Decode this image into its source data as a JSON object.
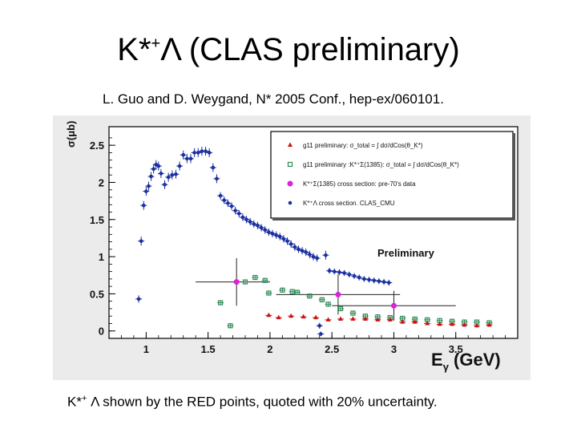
{
  "slide": {
    "title_main": "K*",
    "title_sup": "+",
    "title_rest": "Λ (CLAS preliminary)",
    "subtitle": "L. Guo and D. Weygand, N* 2005 Conf., hep-ex/060101.",
    "caption_main": "K*",
    "caption_sup": "+",
    "caption_rest": " Λ shown by the RED points, quoted with 20% uncertainty."
  },
  "chart_data": {
    "type": "scatter",
    "title": "",
    "annotation": "Preliminary",
    "xlabel": "E_γ (GeV)",
    "xlabel_main": "E",
    "xlabel_sub": "γ",
    "xlabel_unit": " (GeV)",
    "ylabel": "σ(μb)",
    "xlim": [
      0.7,
      4.0
    ],
    "ylim": [
      -0.1,
      2.75
    ],
    "xticks": [
      "1",
      "1.5",
      "2",
      "2.5",
      "3",
      "3.5"
    ],
    "xtick_values": [
      1,
      1.5,
      2,
      2.5,
      3,
      3.5
    ],
    "yticks": [
      "0",
      "0.5",
      "1",
      "1.5",
      "2",
      "2.5"
    ],
    "ytick_values": [
      0,
      0.5,
      1,
      1.5,
      2,
      2.5
    ],
    "grid": false,
    "legend_position": "top-right",
    "colors": {
      "red": "#cc1111",
      "green": "#2e8b57",
      "magenta": "#dd22dd",
      "blue": "#1a2fa0"
    },
    "series": [
      {
        "name": "g11 preliminary σ_total = ∫ dσ/dCos(θ_K*) ",
        "legend_text": "g11 preliminary: σ_total = ∫ dσ/dCos(θ_K*)",
        "marker": "triangle",
        "color": "red",
        "points": [
          {
            "x": 1.99,
            "y": 0.21,
            "err": 0.02
          },
          {
            "x": 2.07,
            "y": 0.18,
            "err": 0.02
          },
          {
            "x": 2.17,
            "y": 0.2,
            "err": 0.02
          },
          {
            "x": 2.27,
            "y": 0.19,
            "err": 0.02
          },
          {
            "x": 2.37,
            "y": 0.18,
            "err": 0.02
          },
          {
            "x": 2.47,
            "y": 0.15,
            "err": 0.02
          },
          {
            "x": 2.57,
            "y": 0.16,
            "err": 0.02
          },
          {
            "x": 2.67,
            "y": 0.16,
            "err": 0.02
          },
          {
            "x": 2.77,
            "y": 0.16,
            "err": 0.02
          },
          {
            "x": 2.87,
            "y": 0.15,
            "err": 0.02
          },
          {
            "x": 2.97,
            "y": 0.15,
            "err": 0.02
          },
          {
            "x": 3.07,
            "y": 0.12,
            "err": 0.02
          },
          {
            "x": 3.17,
            "y": 0.12,
            "err": 0.02
          },
          {
            "x": 3.27,
            "y": 0.1,
            "err": 0.02
          },
          {
            "x": 3.37,
            "y": 0.09,
            "err": 0.02
          },
          {
            "x": 3.47,
            "y": 0.09,
            "err": 0.02
          },
          {
            "x": 3.57,
            "y": 0.08,
            "err": 0.02
          },
          {
            "x": 3.67,
            "y": 0.07,
            "err": 0.02
          },
          {
            "x": 3.77,
            "y": 0.08,
            "err": 0.02
          }
        ]
      },
      {
        "name": "g11 preliminary :K*Σ(1385)",
        "legend_text": "g11 preliminary :K*⁺Σ(1385): σ_total = ∫ dσ/dCos(θ_K*)",
        "marker": "open-square",
        "color": "green",
        "points": [
          {
            "x": 1.6,
            "y": 0.38,
            "err": 0.03
          },
          {
            "x": 1.68,
            "y": 0.07,
            "err": 0.03
          },
          {
            "x": 1.8,
            "y": 0.66,
            "err": 0.03
          },
          {
            "x": 1.88,
            "y": 0.72,
            "err": 0.03
          },
          {
            "x": 1.96,
            "y": 0.68,
            "err": 0.03
          },
          {
            "x": 1.99,
            "y": 0.51,
            "err": 0.03
          },
          {
            "x": 2.1,
            "y": 0.55,
            "err": 0.03
          },
          {
            "x": 2.18,
            "y": 0.53,
            "err": 0.03
          },
          {
            "x": 2.22,
            "y": 0.52,
            "err": 0.03
          },
          {
            "x": 2.32,
            "y": 0.47,
            "err": 0.03
          },
          {
            "x": 2.42,
            "y": 0.42,
            "err": 0.03
          },
          {
            "x": 2.47,
            "y": 0.36,
            "err": 0.03
          },
          {
            "x": 2.57,
            "y": 0.3,
            "err": 0.03
          },
          {
            "x": 2.67,
            "y": 0.24,
            "err": 0.03
          },
          {
            "x": 2.77,
            "y": 0.2,
            "err": 0.03
          },
          {
            "x": 2.87,
            "y": 0.19,
            "err": 0.03
          },
          {
            "x": 2.97,
            "y": 0.18,
            "err": 0.03
          },
          {
            "x": 3.07,
            "y": 0.17,
            "err": 0.03
          },
          {
            "x": 3.17,
            "y": 0.16,
            "err": 0.03
          },
          {
            "x": 3.27,
            "y": 0.15,
            "err": 0.03
          },
          {
            "x": 3.37,
            "y": 0.14,
            "err": 0.03
          },
          {
            "x": 3.47,
            "y": 0.13,
            "err": 0.03
          },
          {
            "x": 3.57,
            "y": 0.12,
            "err": 0.03
          },
          {
            "x": 3.67,
            "y": 0.12,
            "err": 0.03
          },
          {
            "x": 3.77,
            "y": 0.11,
            "err": 0.03
          }
        ]
      },
      {
        "name": "K*Σ(1385) cross section: pre-70's data",
        "legend_text": "K*⁺Σ(1385) cross section: pre-70's data",
        "marker": "circle",
        "color": "magenta",
        "points": [
          {
            "x": 1.73,
            "y": 0.66,
            "err": 0.32,
            "xerr_lo": 0.33,
            "xerr_hi": 0.27
          },
          {
            "x": 2.55,
            "y": 0.49,
            "err": 0.27,
            "xerr_lo": 0.5,
            "xerr_hi": 0.5
          },
          {
            "x": 3.0,
            "y": 0.34,
            "err": 0.2,
            "xerr_lo": 0.5,
            "xerr_hi": 0.5
          }
        ]
      },
      {
        "name": "K*Λ cross section. CLAS_CMU",
        "legend_text": "K*⁺Λ cross section. CLAS_CMU",
        "marker": "filled-circle",
        "color": "blue",
        "points": [
          {
            "x": 0.94,
            "y": 0.43,
            "err": 0.05
          },
          {
            "x": 0.96,
            "y": 1.21,
            "err": 0.06
          },
          {
            "x": 0.98,
            "y": 1.69,
            "err": 0.06
          },
          {
            "x": 1.0,
            "y": 1.88,
            "err": 0.06
          },
          {
            "x": 1.02,
            "y": 1.95,
            "err": 0.06
          },
          {
            "x": 1.04,
            "y": 2.08,
            "err": 0.06
          },
          {
            "x": 1.06,
            "y": 2.18,
            "err": 0.06
          },
          {
            "x": 1.08,
            "y": 2.24,
            "err": 0.06
          },
          {
            "x": 1.1,
            "y": 2.22,
            "err": 0.06
          },
          {
            "x": 1.12,
            "y": 2.12,
            "err": 0.06
          },
          {
            "x": 1.15,
            "y": 1.97,
            "err": 0.06
          },
          {
            "x": 1.18,
            "y": 2.07,
            "err": 0.06
          },
          {
            "x": 1.21,
            "y": 2.1,
            "err": 0.06
          },
          {
            "x": 1.24,
            "y": 2.11,
            "err": 0.06
          },
          {
            "x": 1.27,
            "y": 2.22,
            "err": 0.06
          },
          {
            "x": 1.3,
            "y": 2.37,
            "err": 0.06
          },
          {
            "x": 1.33,
            "y": 2.32,
            "err": 0.06
          },
          {
            "x": 1.36,
            "y": 2.32,
            "err": 0.06
          },
          {
            "x": 1.39,
            "y": 2.4,
            "err": 0.06
          },
          {
            "x": 1.42,
            "y": 2.4,
            "err": 0.06
          },
          {
            "x": 1.45,
            "y": 2.42,
            "err": 0.06
          },
          {
            "x": 1.48,
            "y": 2.42,
            "err": 0.06
          },
          {
            "x": 1.51,
            "y": 2.4,
            "err": 0.06
          },
          {
            "x": 1.54,
            "y": 2.2,
            "err": 0.06
          },
          {
            "x": 1.57,
            "y": 2.05,
            "err": 0.06
          },
          {
            "x": 1.6,
            "y": 1.82,
            "err": 0.05
          },
          {
            "x": 1.63,
            "y": 1.76,
            "err": 0.05
          },
          {
            "x": 1.66,
            "y": 1.72,
            "err": 0.05
          },
          {
            "x": 1.69,
            "y": 1.68,
            "err": 0.05
          },
          {
            "x": 1.72,
            "y": 1.62,
            "err": 0.05
          },
          {
            "x": 1.75,
            "y": 1.58,
            "err": 0.05
          },
          {
            "x": 1.78,
            "y": 1.53,
            "err": 0.05
          },
          {
            "x": 1.81,
            "y": 1.5,
            "err": 0.05
          },
          {
            "x": 1.84,
            "y": 1.47,
            "err": 0.05
          },
          {
            "x": 1.87,
            "y": 1.44,
            "err": 0.05
          },
          {
            "x": 1.9,
            "y": 1.42,
            "err": 0.05
          },
          {
            "x": 1.93,
            "y": 1.39,
            "err": 0.05
          },
          {
            "x": 1.96,
            "y": 1.36,
            "err": 0.05
          },
          {
            "x": 1.99,
            "y": 1.33,
            "err": 0.05
          },
          {
            "x": 2.02,
            "y": 1.31,
            "err": 0.05
          },
          {
            "x": 2.05,
            "y": 1.29,
            "err": 0.05
          },
          {
            "x": 2.08,
            "y": 1.27,
            "err": 0.05
          },
          {
            "x": 2.11,
            "y": 1.24,
            "err": 0.05
          },
          {
            "x": 2.14,
            "y": 1.21,
            "err": 0.05
          },
          {
            "x": 2.17,
            "y": 1.17,
            "err": 0.05
          },
          {
            "x": 2.2,
            "y": 1.13,
            "err": 0.05
          },
          {
            "x": 2.23,
            "y": 1.1,
            "err": 0.05
          },
          {
            "x": 2.26,
            "y": 1.08,
            "err": 0.05
          },
          {
            "x": 2.29,
            "y": 1.06,
            "err": 0.05
          },
          {
            "x": 2.32,
            "y": 1.03,
            "err": 0.05
          },
          {
            "x": 2.35,
            "y": 1.0,
            "err": 0.05
          },
          {
            "x": 2.38,
            "y": 0.98,
            "err": 0.05
          },
          {
            "x": 2.4,
            "y": 0.07,
            "err": 0.04
          },
          {
            "x": 2.41,
            "y": -0.04,
            "err": 0.03
          },
          {
            "x": 2.45,
            "y": 1.02,
            "err": 0.06
          },
          {
            "x": 2.48,
            "y": 0.81,
            "err": 0.04
          },
          {
            "x": 2.52,
            "y": 0.8,
            "err": 0.04
          },
          {
            "x": 2.56,
            "y": 0.79,
            "err": 0.04
          },
          {
            "x": 2.6,
            "y": 0.78,
            "err": 0.04
          },
          {
            "x": 2.64,
            "y": 0.76,
            "err": 0.04
          },
          {
            "x": 2.68,
            "y": 0.74,
            "err": 0.04
          },
          {
            "x": 2.72,
            "y": 0.72,
            "err": 0.04
          },
          {
            "x": 2.76,
            "y": 0.7,
            "err": 0.04
          },
          {
            "x": 2.8,
            "y": 0.69,
            "err": 0.04
          },
          {
            "x": 2.84,
            "y": 0.68,
            "err": 0.04
          },
          {
            "x": 2.88,
            "y": 0.67,
            "err": 0.04
          },
          {
            "x": 2.92,
            "y": 0.66,
            "err": 0.04
          },
          {
            "x": 2.96,
            "y": 0.65,
            "err": 0.04
          }
        ]
      }
    ]
  }
}
